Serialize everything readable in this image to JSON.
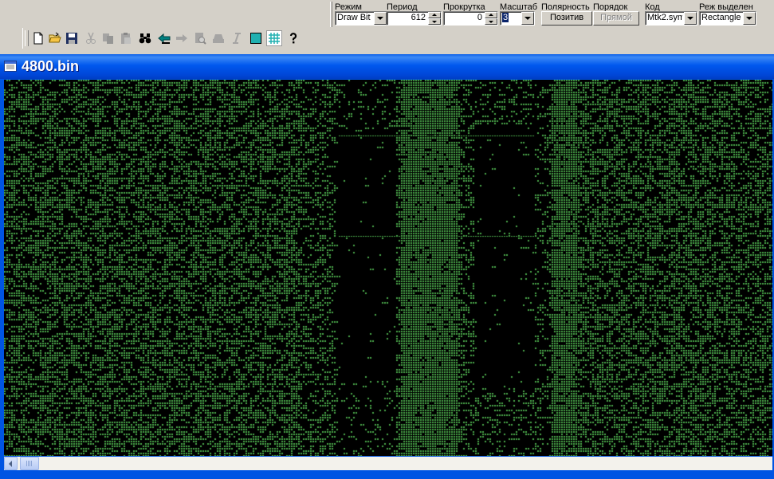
{
  "params": {
    "mode": {
      "label": "Режим",
      "value": "Draw Bit"
    },
    "period": {
      "label": "Период",
      "value": "612"
    },
    "scroll": {
      "label": "Прокрутка",
      "value": "0"
    },
    "scale": {
      "label": "Масштаб",
      "value": "3"
    },
    "polarity": {
      "label": "Полярность",
      "button": "Позитив"
    },
    "order": {
      "label": "Порядок",
      "button": "Прямой"
    },
    "code": {
      "label": "Код",
      "value": "Mtk2.sym"
    },
    "selection_mode": {
      "label": "Реж выделен",
      "value": "Rectangle"
    }
  },
  "toolbar": {
    "icons": [
      "new-file-icon",
      "open-folder-icon",
      "save-disk-icon",
      "cut-scissors-icon",
      "copy-icon",
      "paste-icon",
      "find-binoculars-icon",
      "arrow-left-icon",
      "arrow-right-icon",
      "zoom-page-icon",
      "stamp-icon",
      "italic-i-icon",
      "frame-square-icon",
      "grid-icon",
      "help-question-icon"
    ],
    "disabled": [
      "cut-scissors-icon",
      "copy-icon",
      "paste-icon",
      "arrow-right-icon",
      "zoom-page-icon",
      "stamp-icon",
      "italic-i-icon"
    ]
  },
  "document": {
    "title": "4800.bin"
  },
  "colors": {
    "bit_on": "#4aa84a",
    "bit_off": "#000000",
    "title_bar": "#0054e3",
    "selection": "#0a246a"
  }
}
